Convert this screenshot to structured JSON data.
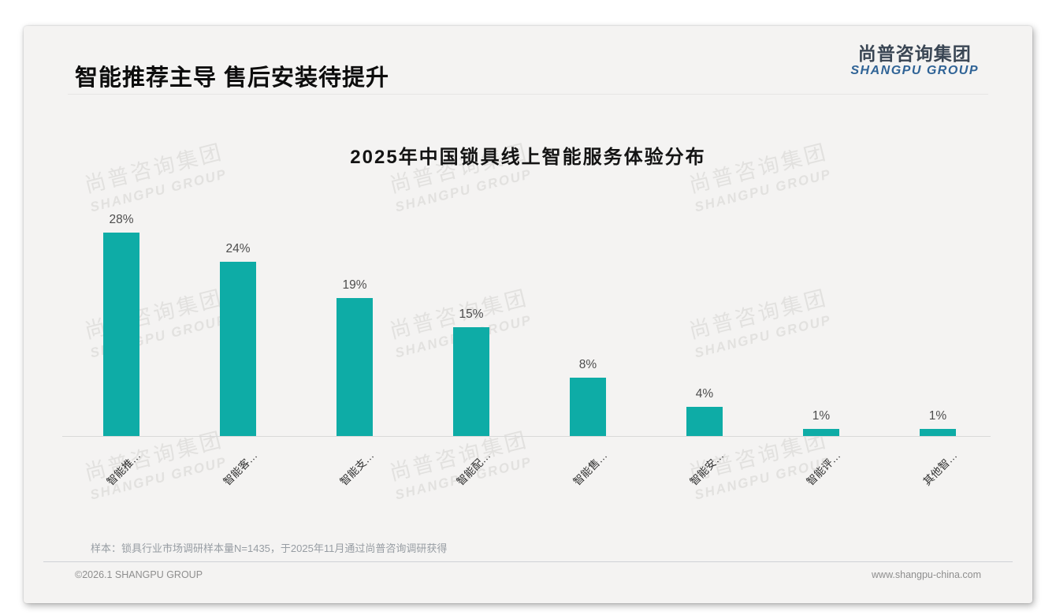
{
  "slide": {
    "title": "智能推荐主导 售后安装待提升",
    "logo": {
      "cn": "尚普咨询集团",
      "en": "SHANGPU GROUP"
    },
    "watermark": {
      "cn": "尚普咨询集团",
      "en": "SHANGPU GROUP"
    },
    "footnote": "样本：锁具行业市场调研样本量N=1435，于2025年11月通过尚普咨询调研获得",
    "footer": {
      "left": "©2026.1 SHANGPU GROUP",
      "right": "www.shangpu-china.com"
    }
  },
  "chart_data": {
    "type": "bar",
    "title": "2025年中国锁具线上智能服务体验分布",
    "categories": [
      "智能推…",
      "智能客…",
      "智能支…",
      "智能配…",
      "智能售…",
      "智能安…",
      "智能评…",
      "其他智…"
    ],
    "values": [
      28,
      24,
      19,
      15,
      8,
      4,
      1,
      1
    ],
    "value_labels": [
      "28%",
      "24%",
      "19%",
      "15%",
      "8%",
      "4%",
      "1%",
      "1%"
    ],
    "unit": "%",
    "ylim": [
      0,
      30
    ],
    "grid": false,
    "legend": "none",
    "bar_color": "#0eaca6",
    "label_color": "#4d4d4d",
    "axis_line_color": "#d9d9d9"
  }
}
